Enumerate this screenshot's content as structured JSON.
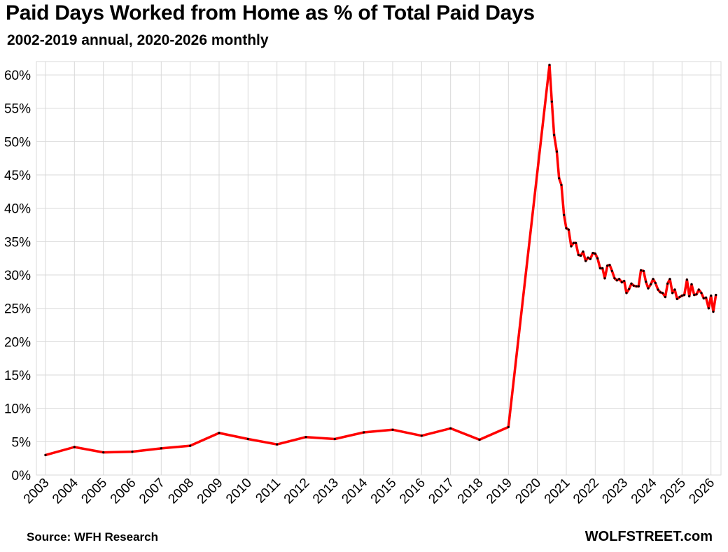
{
  "title": "Paid Days Worked from Home as % of Total Paid Days",
  "subtitle": "2002-2019 annual, 2020-2026 monthly",
  "source": "Source: WFH Research",
  "brand": "WOLFSTREET.com",
  "colors": {
    "line": "#ff0000",
    "markers": "#000000",
    "grid": "#d9d9d9"
  },
  "chart_data": {
    "type": "line",
    "title": "Paid Days Worked from Home as % of Total Paid Days",
    "subtitle": "2002-2019 annual, 2020-2026 monthly",
    "xlabel": "",
    "ylabel": "",
    "ylim": [
      0,
      62
    ],
    "xlim": [
      2003,
      2026.25
    ],
    "grid": true,
    "y_ticks": [
      "0%",
      "5%",
      "10%",
      "15%",
      "20%",
      "25%",
      "30%",
      "35%",
      "40%",
      "45%",
      "50%",
      "55%",
      "60%"
    ],
    "y_tick_values": [
      0,
      5,
      10,
      15,
      20,
      25,
      30,
      35,
      40,
      45,
      50,
      55,
      60
    ],
    "x_ticks": [
      "2003",
      "2004",
      "2005",
      "2006",
      "2007",
      "2008",
      "2009",
      "2010",
      "2011",
      "2012",
      "2013",
      "2014",
      "2015",
      "2016",
      "2017",
      "2018",
      "2019",
      "2020",
      "2021",
      "2022",
      "2023",
      "2024",
      "2025",
      "2026"
    ],
    "series": [
      {
        "x": [
          2003,
          2004,
          2005,
          2006,
          2007,
          2008,
          2009,
          2010,
          2011,
          2012,
          2013,
          2014,
          2015,
          2016,
          2017,
          2018,
          2019,
          2020.42,
          2020.5,
          2020.58,
          2020.67,
          2020.75,
          2020.83,
          2020.92,
          2021.0,
          2021.08,
          2021.17,
          2021.25,
          2021.33,
          2021.42,
          2021.5,
          2021.58,
          2021.67,
          2021.75,
          2021.83,
          2021.92,
          2022.0,
          2022.08,
          2022.17,
          2022.25,
          2022.33,
          2022.42,
          2022.5,
          2022.58,
          2022.67,
          2022.75,
          2022.83,
          2022.92,
          2023.0,
          2023.08,
          2023.17,
          2023.25,
          2023.33,
          2023.42,
          2023.5,
          2023.58,
          2023.67,
          2023.75,
          2023.83,
          2023.92,
          2024.0,
          2024.08,
          2024.17,
          2024.25,
          2024.33,
          2024.42,
          2024.5,
          2024.58,
          2024.67,
          2024.75,
          2024.83,
          2024.92,
          2025.0,
          2025.08,
          2025.17,
          2025.25,
          2025.33,
          2025.42,
          2025.5,
          2025.58,
          2025.67,
          2025.75,
          2025.83,
          2025.92,
          2026.0,
          2026.08,
          2026.17
        ],
        "values": [
          3.0,
          4.2,
          3.4,
          3.5,
          4.0,
          4.4,
          6.3,
          5.4,
          4.6,
          5.7,
          5.4,
          6.4,
          6.8,
          5.9,
          7.0,
          5.3,
          7.2,
          61.5,
          56.0,
          51.0,
          48.5,
          44.5,
          43.5,
          39.0,
          37.0,
          36.8,
          34.3,
          34.8,
          34.8,
          33.0,
          32.9,
          33.5,
          32.1,
          32.6,
          32.4,
          33.3,
          33.2,
          32.5,
          31.0,
          31.0,
          29.5,
          31.4,
          31.5,
          30.6,
          29.5,
          29.2,
          29.4,
          28.9,
          29.1,
          27.3,
          27.9,
          28.7,
          28.4,
          28.3,
          28.3,
          30.7,
          30.6,
          29.0,
          28.0,
          28.6,
          29.4,
          28.8,
          27.8,
          27.4,
          27.3,
          26.7,
          28.7,
          29.4,
          27.3,
          27.8,
          26.4,
          26.7,
          26.9,
          27.0,
          29.3,
          26.8,
          28.6,
          27.0,
          27.1,
          27.8,
          27.3,
          26.5,
          26.6,
          25.0,
          26.9,
          24.5,
          27.0
        ]
      }
    ]
  }
}
